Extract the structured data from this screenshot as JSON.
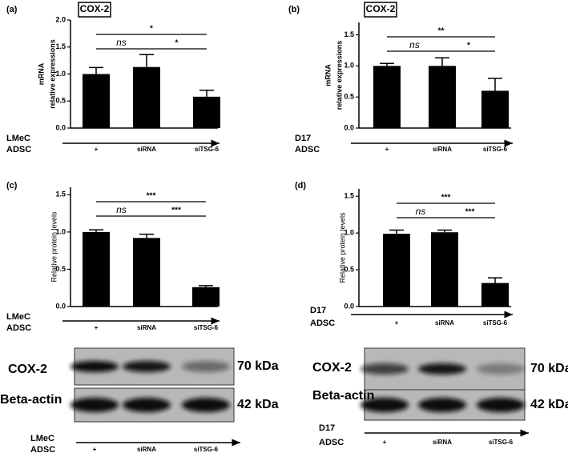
{
  "chart_data": [
    {
      "type": "bar",
      "panel_label": "(a)",
      "title": "COX-2",
      "ylabel": [
        "mRNA",
        "relative expressions"
      ],
      "categories": [
        "+",
        "siRNA",
        "siTSG-6"
      ],
      "values": [
        1.0,
        1.13,
        0.58
      ],
      "errors": [
        0.12,
        0.23,
        0.12
      ],
      "color": "#000000",
      "ylim": [
        0,
        2.0
      ],
      "yticks": [
        {
          "value": 0,
          "label": "0.0"
        },
        0.5,
        {
          "value": 1,
          "label": "1.0"
        },
        1.5,
        {
          "value": 2,
          "label": "2.0"
        }
      ],
      "x_rows": [
        "LMeC",
        "ADSC"
      ],
      "annotations": [
        "*",
        "ns",
        "*"
      ]
    },
    {
      "type": "bar",
      "panel_label": "(b)",
      "title": "COX-2",
      "ylabel": [
        "mRNA",
        "relative expressions"
      ],
      "categories": [
        "+",
        "siRNA",
        "siTSG-6"
      ],
      "values": [
        1.0,
        1.0,
        0.6
      ],
      "errors": [
        0.04,
        0.13,
        0.2
      ],
      "color": "#000000",
      "ylim": [
        0,
        1.7
      ],
      "yticks": [
        {
          "value": 0,
          "label": "0.0"
        },
        0.5,
        {
          "value": 1,
          "label": "1.0"
        },
        1.5
      ],
      "x_rows": [
        "D17",
        "ADSC"
      ],
      "annotations": [
        "**",
        "ns",
        "*"
      ]
    },
    {
      "type": "bar",
      "panel_label": "(c)",
      "ylabel": [
        "Relative protein levels"
      ],
      "categories": [
        "+",
        "siRNA",
        "siTSG-6"
      ],
      "values": [
        1.0,
        0.92,
        0.26
      ],
      "errors": [
        0.03,
        0.05,
        0.02
      ],
      "color": "#000000",
      "ylim": [
        0,
        1.6
      ],
      "yticks": [
        {
          "value": 0,
          "label": "0.0"
        },
        0.5,
        {
          "value": 1,
          "label": "1.0"
        },
        1.5
      ],
      "x_rows": [
        "LMeC",
        "ADSC"
      ],
      "annotations": [
        "***",
        "ns",
        "***"
      ]
    },
    {
      "type": "bar",
      "panel_label": "(d)",
      "ylabel": [
        "Relative protein levels"
      ],
      "categories": [
        "+",
        "siRNA",
        "siTSG-6"
      ],
      "values": [
        0.99,
        1.01,
        0.32
      ],
      "errors": [
        0.05,
        0.03,
        0.07
      ],
      "color": "#000000",
      "ylim": [
        0,
        1.6
      ],
      "yticks": [
        {
          "value": 0,
          "label": "0.0"
        },
        0.5,
        {
          "value": 1,
          "label": "1.0"
        },
        1.5
      ],
      "x_rows": [
        "D17",
        "ADSC"
      ],
      "annotations": [
        "***",
        "ns",
        "***"
      ]
    }
  ],
  "blots": [
    {
      "rows": [
        {
          "label": "COX-2",
          "kda": "70 kDa"
        },
        {
          "label": "Beta-actin",
          "kda": "42 kDa"
        }
      ],
      "x_rows": [
        "LMeC",
        "ADSC"
      ],
      "lanes": [
        "+",
        "siRNA",
        "siTSG-6"
      ]
    },
    {
      "rows": [
        {
          "label": "COX-2",
          "kda": "70 kDa"
        },
        {
          "label": "Beta-actin",
          "kda": "42 kDa"
        }
      ],
      "x_rows": [
        "D17",
        "ADSC"
      ],
      "lanes": [
        "+",
        "siRNA",
        "siTSG-6"
      ]
    }
  ]
}
